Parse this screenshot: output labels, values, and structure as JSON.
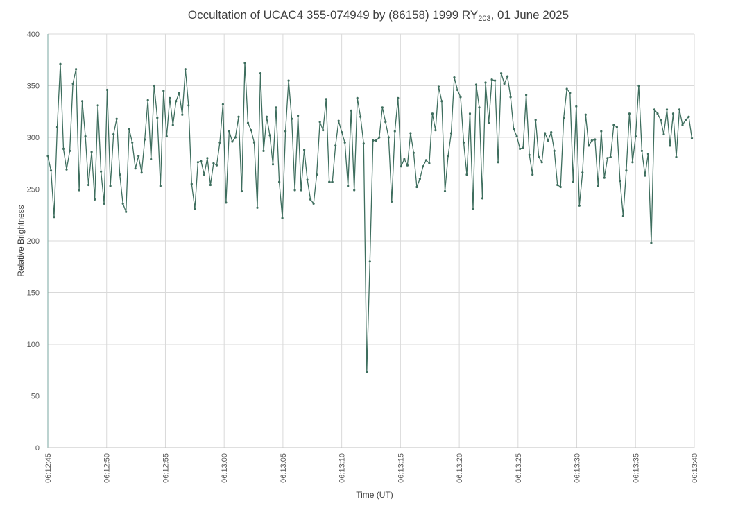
{
  "chart_data": {
    "type": "line",
    "title_main": "Occultation of UCAC4 355-074949 by (86158) 1999 RY",
    "title_sub": "203",
    "title_tail": ", 01 June 2025",
    "xlabel": "Time (UT)",
    "ylabel": "Relative Brightness",
    "ylim": [
      0,
      400
    ],
    "yticks": [
      0,
      50,
      100,
      150,
      200,
      250,
      300,
      350,
      400
    ],
    "xlim": [
      "06:12:45",
      "06:13:40"
    ],
    "xticks": [
      "06:12:45",
      "06:12:50",
      "06:12:55",
      "06:13:00",
      "06:13:05",
      "06:13:10",
      "06:13:15",
      "06:13:20",
      "06:13:25",
      "06:13:30",
      "06:13:35",
      "06:13:40"
    ],
    "grid": true,
    "line_color": "#3e6e5e",
    "series": [
      {
        "sample_interval_s": 0.266,
        "values": [
          282,
          268,
          223,
          310,
          371,
          289,
          269,
          287,
          352,
          366,
          249,
          335,
          301,
          254,
          286,
          240,
          331,
          267,
          236,
          346,
          253,
          303,
          318,
          264,
          236,
          228,
          308,
          295,
          270,
          282,
          266,
          298,
          336,
          279,
          350,
          319,
          253,
          345,
          301,
          338,
          312,
          335,
          343,
          322,
          366,
          331,
          255,
          231,
          276,
          277,
          264,
          280,
          254,
          275,
          273,
          295,
          332,
          237,
          306,
          296,
          300,
          320,
          248,
          372,
          314,
          307,
          295,
          232,
          362,
          287,
          320,
          302,
          274,
          329,
          257,
          222,
          306,
          355,
          318,
          249,
          321,
          249,
          288,
          259,
          240,
          236,
          264,
          315,
          307,
          337,
          257,
          257,
          292,
          316,
          305,
          295,
          253,
          326,
          249,
          338,
          320,
          294,
          73,
          180,
          297,
          297,
          300,
          329,
          315,
          300,
          238,
          306,
          338,
          272,
          279,
          273,
          304,
          285,
          252,
          260,
          272,
          278,
          275,
          323,
          307,
          349,
          335,
          248,
          282,
          304,
          358,
          346,
          339,
          295,
          264,
          323,
          231,
          351,
          329,
          241,
          353,
          314,
          356,
          355,
          276,
          362,
          352,
          359,
          339,
          308,
          301,
          289,
          290,
          341,
          283,
          264,
          317,
          281,
          276,
          304,
          297,
          305,
          287,
          254,
          252,
          319,
          347,
          343,
          257,
          330,
          234,
          266,
          322,
          292,
          297,
          298,
          253,
          306,
          261,
          280,
          281,
          312,
          310,
          258,
          224,
          268,
          323,
          276,
          301,
          350,
          287,
          263,
          284,
          198,
          327,
          323,
          317,
          303,
          327,
          292,
          323,
          281,
          327,
          312,
          317,
          320,
          299
        ]
      }
    ]
  }
}
